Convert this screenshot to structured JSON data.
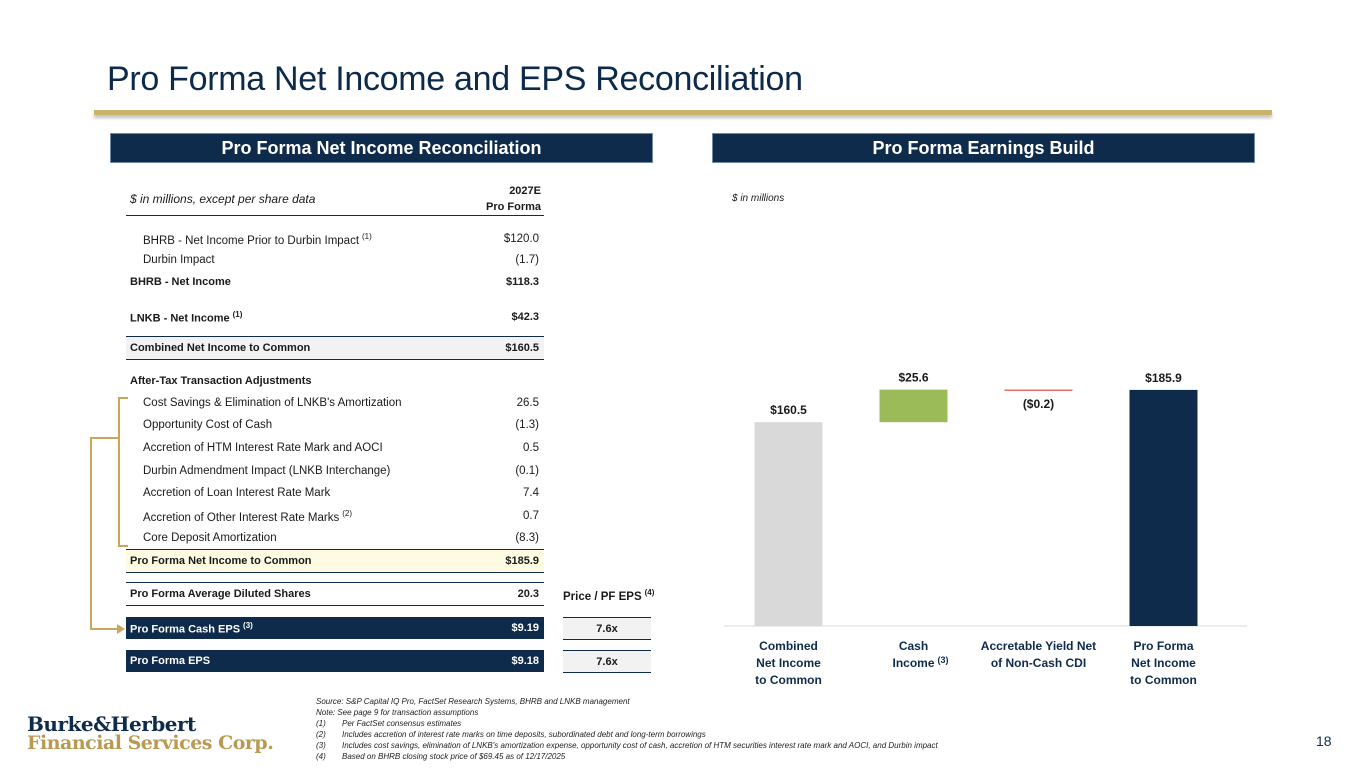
{
  "title": "Pro Forma Net Income and EPS Reconciliation",
  "left_panel": {
    "banner": "Pro Forma Net Income Reconciliation",
    "note": "$ in millions, except per share data",
    "col_year": "2027E",
    "col_sub": "Pro Forma",
    "rows": [
      {
        "label": "BHRB - Net Income Prior to Durbin Impact",
        "sup": "(1)",
        "value": "$120.0"
      },
      {
        "label": "Durbin Impact",
        "sup": "",
        "value": "(1.7)"
      },
      {
        "label": "BHRB - Net Income",
        "sup": "",
        "value": "$118.3"
      },
      {
        "label": "LNKB - Net Income",
        "sup": "(1)",
        "value": "$42.3"
      },
      {
        "label": "Combined Net Income to Common",
        "sup": "",
        "value": "$160.5"
      },
      {
        "label": "After-Tax Transaction Adjustments",
        "sup": "",
        "value": ""
      },
      {
        "label": "Cost Savings & Elimination of LNKB's Amortization",
        "sup": "",
        "value": "26.5"
      },
      {
        "label": "Opportunity Cost of Cash",
        "sup": "",
        "value": "(1.3)"
      },
      {
        "label": "Accretion of HTM Interest Rate Mark and AOCI",
        "sup": "",
        "value": "0.5"
      },
      {
        "label": "Durbin Admendment Impact (LNKB Interchange)",
        "sup": "",
        "value": "(0.1)"
      },
      {
        "label": "Accretion of Loan Interest Rate Mark",
        "sup": "",
        "value": "7.4"
      },
      {
        "label": "Accretion of Other Interest Rate Marks",
        "sup": "(2)",
        "value": "0.7"
      },
      {
        "label": "Core Deposit Amortization",
        "sup": "",
        "value": "(8.3)"
      },
      {
        "label": "Pro Forma Net Income to Common",
        "sup": "",
        "value": "$185.9"
      },
      {
        "label": "Pro Forma Average Diluted Shares",
        "sup": "",
        "value": "20.3"
      },
      {
        "label": "Pro Forma Cash EPS",
        "sup": "(3)",
        "value": "$9.19"
      },
      {
        "label": "Pro Forma EPS",
        "sup": "",
        "value": "$9.18"
      }
    ],
    "pe_header": "Price / PF EPS",
    "pe_sup": "(4)",
    "pe_values": [
      "7.6x",
      "7.6x"
    ]
  },
  "right_panel": {
    "banner": "Pro Forma Earnings Build",
    "note": "$ in millions"
  },
  "chart_data": {
    "type": "bar",
    "subtype": "waterfall",
    "categories": [
      [
        "Combined",
        "Net Income",
        "to Common"
      ],
      [
        "Cash",
        "Income"
      ],
      [
        "Accretable Yield Net",
        "of Non-Cash CDI"
      ],
      [
        "Pro Forma",
        "Net Income",
        "to Common"
      ]
    ],
    "category_sups": [
      "",
      "(3)",
      "",
      ""
    ],
    "values": [
      160.5,
      25.6,
      -0.2,
      185.9
    ],
    "data_labels": [
      "$160.5",
      "$25.6",
      "($0.2)",
      "$185.9"
    ],
    "kinds": [
      "total",
      "increase",
      "decrease",
      "total"
    ],
    "colors": [
      "#d9d9d9",
      "#9bbb59",
      "#e02020",
      "#0f2b4c"
    ],
    "ylim": [
      0,
      200
    ],
    "title": "Pro Forma Earnings Build",
    "ylabel": "$ in millions"
  },
  "footnotes": {
    "source": "Source: S&P Capital IQ Pro, FactSet Research Systems, BHRB and LNKB management",
    "note": "Note: See page 9 for transaction assumptions",
    "items": [
      {
        "num": "(1)",
        "text": "Per FactSet consensus estimates"
      },
      {
        "num": "(2)",
        "text": "Includes accretion of interest rate marks on time deposits, subordinated debt and long-term borrowings"
      },
      {
        "num": "(3)",
        "text": "Includes cost savings, elimination of LNKB's amortization expense, opportunity cost of cash, accretion of HTM securities interest rate mark and AOCI, and Durbin impact"
      },
      {
        "num": "(4)",
        "text": "Based on BHRB closing stock price of $69.45 as of 12/17/2025"
      }
    ]
  },
  "logo": {
    "line1": "Burke&Herbert",
    "line2": "Financial Services Corp."
  },
  "page_number": "18"
}
